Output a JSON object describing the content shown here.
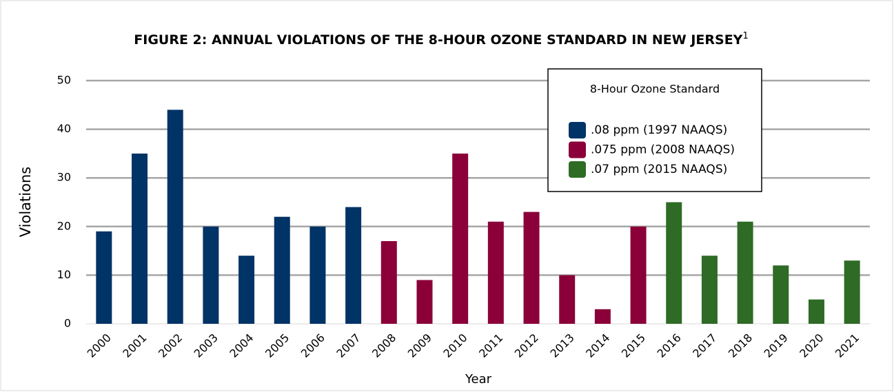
{
  "chart_data": {
    "type": "bar",
    "title": "FIGURE 2: ANNUAL VIOLATIONS OF THE 8-HOUR OZONE STANDARD IN NEW JERSEY",
    "title_superscript": "1",
    "x_label": "Year",
    "y_label": "Violations",
    "legend_title": "8-Hour Ozone Standard",
    "categories": [
      "2000",
      "2001",
      "2002",
      "2003",
      "2004",
      "2005",
      "2006",
      "2007",
      "2008",
      "2009",
      "2010",
      "2011",
      "2012",
      "2013",
      "2014",
      "2015",
      "2016",
      "2017",
      "2018",
      "2019",
      "2020",
      "2021"
    ],
    "series": [
      {
        "name": ".08 ppm (1997 NAAQS)",
        "color": "#003366",
        "values": [
          19,
          35,
          44,
          20,
          14,
          22,
          20,
          24,
          null,
          null,
          null,
          null,
          null,
          null,
          null,
          null,
          null,
          null,
          null,
          null,
          null,
          null
        ]
      },
      {
        "name": ".075 ppm (2008 NAAQS)",
        "color": "#8b0039",
        "values": [
          null,
          null,
          null,
          null,
          null,
          null,
          null,
          null,
          17,
          9,
          35,
          21,
          23,
          10,
          3,
          20,
          null,
          null,
          null,
          null,
          null,
          null
        ]
      },
      {
        "name": ".07 ppm (2015 NAAQS)",
        "color": "#2e6b25",
        "values": [
          null,
          null,
          null,
          null,
          null,
          null,
          null,
          null,
          null,
          null,
          null,
          null,
          null,
          null,
          null,
          null,
          25,
          14,
          21,
          12,
          5,
          13
        ]
      }
    ],
    "ylim": [
      0,
      50
    ],
    "yticks": [
      0,
      10,
      20,
      30,
      40,
      50
    ],
    "grid": true
  }
}
